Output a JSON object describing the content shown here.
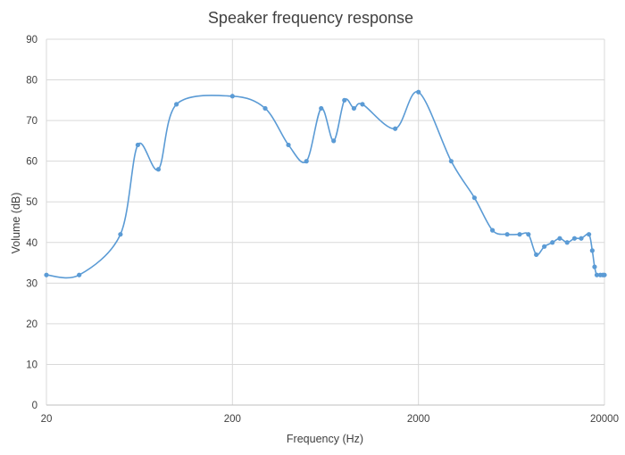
{
  "chart_data": {
    "type": "line",
    "title": "Speaker frequency response",
    "xlabel": "Frequency (Hz)",
    "ylabel": "Volume (dB)",
    "x_scale": "log",
    "xlim": [
      20,
      20000
    ],
    "ylim": [
      0,
      90
    ],
    "x_ticks": [
      20,
      200,
      2000,
      20000
    ],
    "x_tick_labels": [
      "20",
      "200",
      "2000",
      "20000"
    ],
    "y_ticks": [
      0,
      10,
      20,
      30,
      40,
      50,
      60,
      70,
      80,
      90
    ],
    "y_tick_labels": [
      "0",
      "10",
      "20",
      "30",
      "40",
      "50",
      "60",
      "70",
      "80",
      "90"
    ],
    "grid": true,
    "legend": "none",
    "color": "#5b9bd5",
    "series": [
      {
        "x": [
          20,
          30,
          50,
          62,
          80,
          100,
          200,
          300,
          400,
          500,
          600,
          700,
          800,
          900,
          1000,
          1500,
          2000,
          3000,
          4000,
          5000,
          6000,
          7000,
          7800,
          8600,
          9500,
          10500,
          11500,
          12600,
          13800,
          15000,
          16500,
          17200,
          17700,
          18200,
          19000,
          19600,
          20000
        ],
        "y": [
          32,
          32,
          42,
          64,
          58,
          74,
          76,
          73,
          64,
          60,
          73,
          65,
          75,
          73,
          74,
          68,
          77,
          60,
          51,
          43,
          42,
          42,
          42,
          37,
          39,
          40,
          41,
          40,
          41,
          41,
          42,
          38,
          34,
          32,
          32,
          32,
          32
        ]
      }
    ]
  }
}
